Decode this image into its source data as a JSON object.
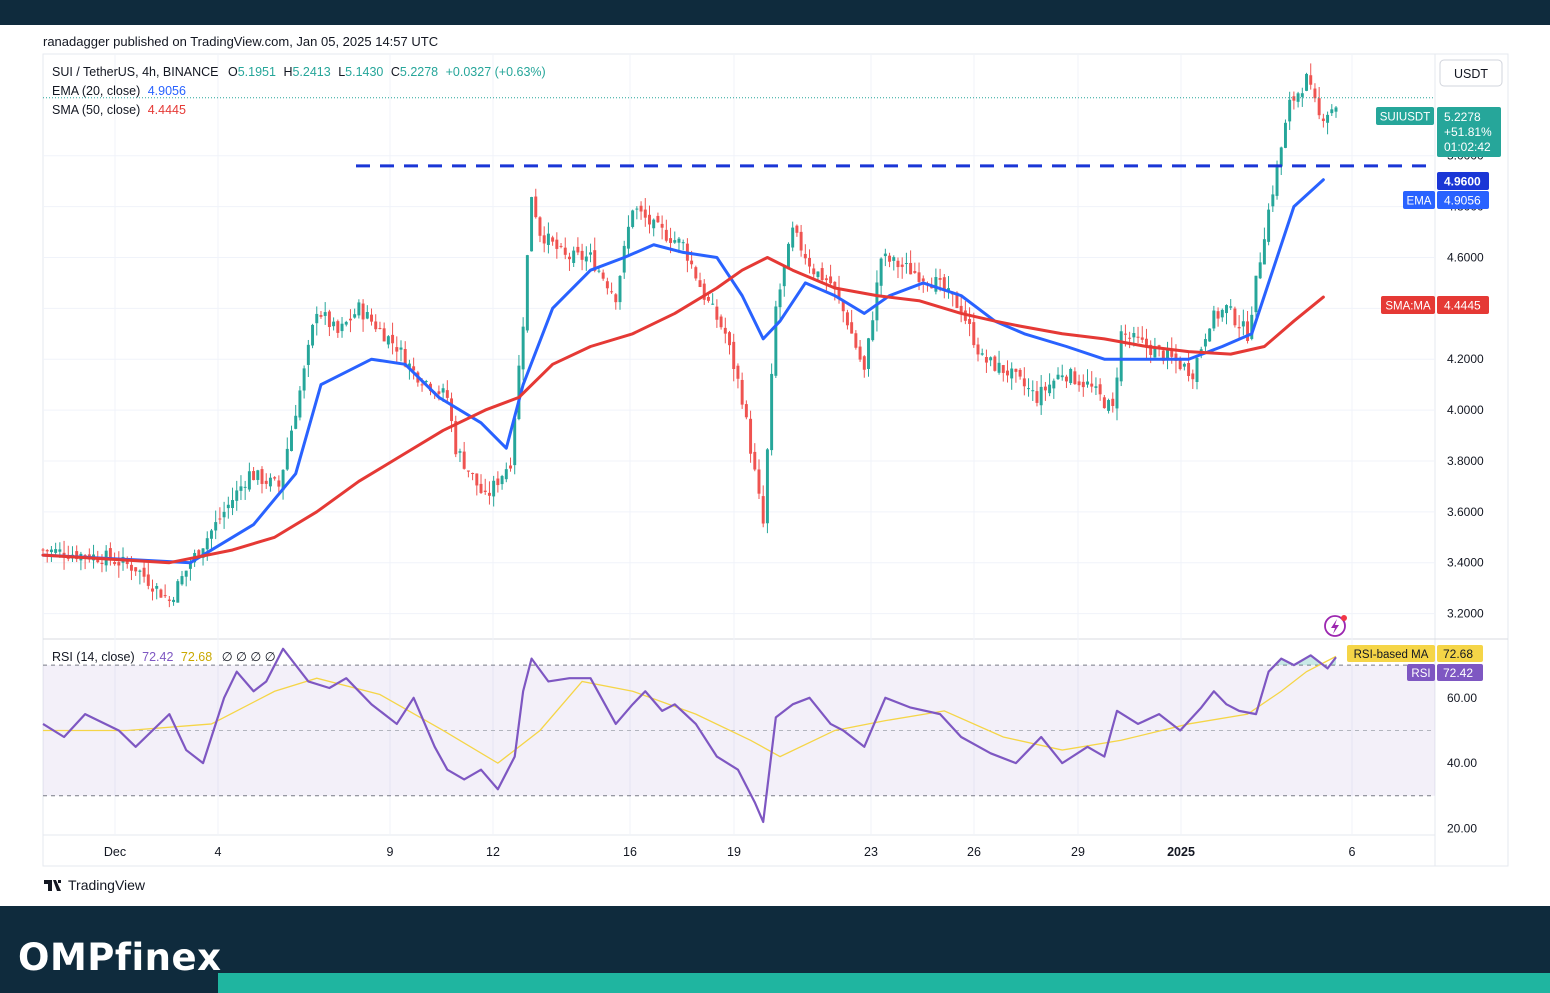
{
  "publisher": "ranadagger published on TradingView.com, Jan 05, 2025 14:57 UTC",
  "legend": {
    "symbol": "SUI / TetherUS, 4h, BINANCE",
    "o_label": "O",
    "o_value": "5.1951",
    "h_label": "H",
    "h_value": "5.2413",
    "l_label": "L",
    "l_value": "5.1430",
    "c_label": "C",
    "c_value": "5.2278",
    "change": "+0.0327 (+0.63%)",
    "ema_label": "EMA (20, close)",
    "ema_value": "4.9056",
    "sma_label": "SMA (50, close)",
    "sma_value": "4.4445"
  },
  "currency": "USDT",
  "price_tag": {
    "symbol": "SUIUSDT",
    "price": "5.2278",
    "change": "+51.81%",
    "countdown": "01:02:42"
  },
  "level_tag": "4.9600",
  "ema_tag": {
    "label": "EMA",
    "value": "4.9056"
  },
  "sma_tag": {
    "label": "SMA:MA",
    "value": "4.4445"
  },
  "rsi_legend": {
    "label": "RSI (14, close)",
    "value": "72.42",
    "ma_value": "72.68",
    "extras": "∅ ∅ ∅ ∅"
  },
  "rsi_ma_tag": {
    "label": "RSI-based MA",
    "value": "72.68"
  },
  "rsi_tag": {
    "label": "RSI",
    "value": "72.42"
  },
  "tradingview_logo": "TradingView",
  "brand": "OMPfinex",
  "colors": {
    "up": "#26a69a",
    "down": "#ef5350",
    "ema": "#2962ff",
    "sma": "#e53935",
    "level": "#1a36d6",
    "rsi": "#7e57c2",
    "rsi_ma": "#f5d547",
    "header": "#0f2b3d",
    "accent": "#1fb5a0"
  },
  "chart_data": [
    {
      "type": "candlestick",
      "title": "SUI / TetherUS, 4h, BINANCE",
      "ylim": [
        3.1,
        5.4
      ],
      "y_ticks": [
        3.2,
        3.4,
        3.6,
        3.8,
        4.0,
        4.2,
        4.4,
        4.6,
        4.8,
        5.0
      ],
      "y_tick_labels": [
        "3.2000",
        "3.4000",
        "3.6000",
        "3.8000",
        "4.0000",
        "4.2000",
        "4.4000",
        "4.6000",
        "4.8000",
        "5.0000"
      ],
      "x_ticks": [
        "Dec",
        "4",
        "9",
        "12",
        "16",
        "19",
        "23",
        "26",
        "29",
        "2025",
        "6"
      ],
      "resistance_level": 4.96,
      "last_price": 5.2278,
      "close_series": {
        "name": "SUIUSDT",
        "points": [
          [
            0,
            3.45
          ],
          [
            15,
            3.42
          ],
          [
            22,
            3.38
          ],
          [
            30,
            3.25
          ],
          [
            35,
            3.4
          ],
          [
            43,
            3.6
          ],
          [
            49,
            3.75
          ],
          [
            56,
            3.7
          ],
          [
            62,
            4.15
          ],
          [
            65,
            4.4
          ],
          [
            70,
            4.3
          ],
          [
            75,
            4.4
          ],
          [
            84,
            4.25
          ],
          [
            88,
            4.15
          ],
          [
            96,
            4.05
          ],
          [
            98,
            3.85
          ],
          [
            105,
            3.65
          ],
          [
            111,
            3.8
          ],
          [
            114,
            4.35
          ],
          [
            116,
            4.85
          ],
          [
            118,
            4.7
          ],
          [
            124,
            4.6
          ],
          [
            130,
            4.6
          ],
          [
            136,
            4.45
          ],
          [
            140,
            4.8
          ],
          [
            145,
            4.72
          ],
          [
            152,
            4.65
          ],
          [
            157,
            4.45
          ],
          [
            162,
            4.3
          ],
          [
            166,
            4.05
          ],
          [
            171,
            3.55
          ],
          [
            174,
            4.4
          ],
          [
            178,
            4.7
          ],
          [
            183,
            4.55
          ],
          [
            187,
            4.5
          ],
          [
            191,
            4.35
          ],
          [
            195,
            4.15
          ],
          [
            199,
            4.6
          ],
          [
            206,
            4.55
          ],
          [
            212,
            4.5
          ],
          [
            218,
            4.4
          ],
          [
            223,
            4.2
          ],
          [
            229,
            4.15
          ],
          [
            236,
            4.05
          ],
          [
            242,
            4.15
          ],
          [
            248,
            4.1
          ],
          [
            254,
            4.0
          ],
          [
            256,
            4.3
          ],
          [
            262,
            4.25
          ],
          [
            268,
            4.2
          ],
          [
            273,
            4.15
          ],
          [
            277,
            4.35
          ],
          [
            281,
            4.4
          ],
          [
            286,
            4.3
          ],
          [
            290,
            4.7
          ],
          [
            293,
            4.95
          ],
          [
            296,
            5.2
          ],
          [
            300,
            5.3
          ],
          [
            303,
            5.15
          ],
          [
            307,
            5.2
          ]
        ]
      },
      "series": [
        {
          "name": "EMA (20, close)",
          "last": 4.9056,
          "points": [
            [
              0,
              3.43
            ],
            [
              35,
              3.4
            ],
            [
              50,
              3.55
            ],
            [
              60,
              3.75
            ],
            [
              66,
              4.1
            ],
            [
              72,
              4.15
            ],
            [
              78,
              4.2
            ],
            [
              86,
              4.18
            ],
            [
              94,
              4.05
            ],
            [
              104,
              3.95
            ],
            [
              110,
              3.85
            ],
            [
              114,
              4.1
            ],
            [
              121,
              4.4
            ],
            [
              130,
              4.55
            ],
            [
              138,
              4.6
            ],
            [
              145,
              4.65
            ],
            [
              152,
              4.62
            ],
            [
              160,
              4.6
            ],
            [
              166,
              4.45
            ],
            [
              171,
              4.28
            ],
            [
              175,
              4.35
            ],
            [
              181,
              4.5
            ],
            [
              188,
              4.45
            ],
            [
              195,
              4.38
            ],
            [
              201,
              4.45
            ],
            [
              209,
              4.5
            ],
            [
              218,
              4.45
            ],
            [
              226,
              4.35
            ],
            [
              233,
              4.3
            ],
            [
              243,
              4.25
            ],
            [
              252,
              4.2
            ],
            [
              262,
              4.2
            ],
            [
              272,
              4.2
            ],
            [
              280,
              4.25
            ],
            [
              287,
              4.3
            ],
            [
              292,
              4.55
            ],
            [
              297,
              4.8
            ],
            [
              304,
              4.9056
            ]
          ]
        },
        {
          "name": "SMA (50, close)",
          "last": 4.4445,
          "points": [
            [
              0,
              3.43
            ],
            [
              30,
              3.4
            ],
            [
              45,
              3.45
            ],
            [
              55,
              3.5
            ],
            [
              65,
              3.6
            ],
            [
              75,
              3.72
            ],
            [
              85,
              3.82
            ],
            [
              95,
              3.92
            ],
            [
              105,
              4.0
            ],
            [
              113,
              4.05
            ],
            [
              121,
              4.18
            ],
            [
              130,
              4.25
            ],
            [
              140,
              4.3
            ],
            [
              150,
              4.38
            ],
            [
              160,
              4.48
            ],
            [
              166,
              4.55
            ],
            [
              172,
              4.6
            ],
            [
              178,
              4.55
            ],
            [
              188,
              4.48
            ],
            [
              198,
              4.45
            ],
            [
              208,
              4.43
            ],
            [
              218,
              4.38
            ],
            [
              226,
              4.35
            ],
            [
              232,
              4.33
            ],
            [
              242,
              4.3
            ],
            [
              252,
              4.28
            ],
            [
              262,
              4.25
            ],
            [
              272,
              4.23
            ],
            [
              282,
              4.22
            ],
            [
              290,
              4.25
            ],
            [
              297,
              4.35
            ],
            [
              304,
              4.4445
            ]
          ]
        }
      ]
    },
    {
      "type": "line",
      "title": "RSI (14, close)",
      "ylim": [
        18,
        78
      ],
      "y_ticks": [
        20,
        40,
        60
      ],
      "y_tick_labels": [
        "20.00",
        "40.00",
        "60.00"
      ],
      "bands": [
        30,
        50,
        70
      ],
      "series": [
        {
          "name": "RSI",
          "last": 72.42,
          "points": [
            [
              0,
              52
            ],
            [
              5,
              48
            ],
            [
              10,
              55
            ],
            [
              18,
              50
            ],
            [
              22,
              45
            ],
            [
              30,
              55
            ],
            [
              34,
              44
            ],
            [
              38,
              40
            ],
            [
              43,
              60
            ],
            [
              46,
              68
            ],
            [
              50,
              62
            ],
            [
              53,
              65
            ],
            [
              57,
              75
            ],
            [
              60,
              70
            ],
            [
              63,
              65
            ],
            [
              68,
              63
            ],
            [
              72,
              66
            ],
            [
              78,
              58
            ],
            [
              84,
              52
            ],
            [
              88,
              60
            ],
            [
              93,
              45
            ],
            [
              96,
              38
            ],
            [
              100,
              35
            ],
            [
              104,
              38
            ],
            [
              108,
              32
            ],
            [
              112,
              42
            ],
            [
              114,
              62
            ],
            [
              116,
              72
            ],
            [
              120,
              65
            ],
            [
              125,
              66
            ],
            [
              130,
              66
            ],
            [
              136,
              52
            ],
            [
              140,
              58
            ],
            [
              143,
              62
            ],
            [
              147,
              56
            ],
            [
              150,
              58
            ],
            [
              155,
              52
            ],
            [
              160,
              42
            ],
            [
              165,
              38
            ],
            [
              169,
              28
            ],
            [
              171,
              22
            ],
            [
              174,
              54
            ],
            [
              178,
              58
            ],
            [
              182,
              60
            ],
            [
              187,
              52
            ],
            [
              190,
              50
            ],
            [
              195,
              45
            ],
            [
              200,
              60
            ],
            [
              206,
              57
            ],
            [
              213,
              55
            ],
            [
              218,
              48
            ],
            [
              225,
              43
            ],
            [
              231,
              40
            ],
            [
              234,
              44
            ],
            [
              237,
              48
            ],
            [
              242,
              40
            ],
            [
              248,
              45
            ],
            [
              252,
              42
            ],
            [
              255,
              56
            ],
            [
              260,
              52
            ],
            [
              265,
              55
            ],
            [
              270,
              50
            ],
            [
              275,
              57
            ],
            [
              278,
              62
            ],
            [
              281,
              58
            ],
            [
              284,
              56
            ],
            [
              288,
              55
            ],
            [
              291,
              68
            ],
            [
              294,
              72
            ],
            [
              297,
              70
            ],
            [
              301,
              73
            ],
            [
              305,
              69
            ],
            [
              307,
              72.42
            ]
          ]
        },
        {
          "name": "RSI-based MA",
          "last": 72.68,
          "points": [
            [
              0,
              50
            ],
            [
              20,
              50
            ],
            [
              40,
              52
            ],
            [
              55,
              62
            ],
            [
              65,
              66
            ],
            [
              80,
              61
            ],
            [
              95,
              50
            ],
            [
              108,
              40
            ],
            [
              118,
              50
            ],
            [
              128,
              65
            ],
            [
              140,
              62
            ],
            [
              155,
              55
            ],
            [
              168,
              47
            ],
            [
              175,
              42
            ],
            [
              188,
              50
            ],
            [
              200,
              53
            ],
            [
              214,
              56
            ],
            [
              228,
              48
            ],
            [
              242,
              44
            ],
            [
              256,
              47
            ],
            [
              272,
              52
            ],
            [
              286,
              55
            ],
            [
              294,
              62
            ],
            [
              300,
              68
            ],
            [
              307,
              72.68
            ]
          ]
        }
      ]
    }
  ]
}
